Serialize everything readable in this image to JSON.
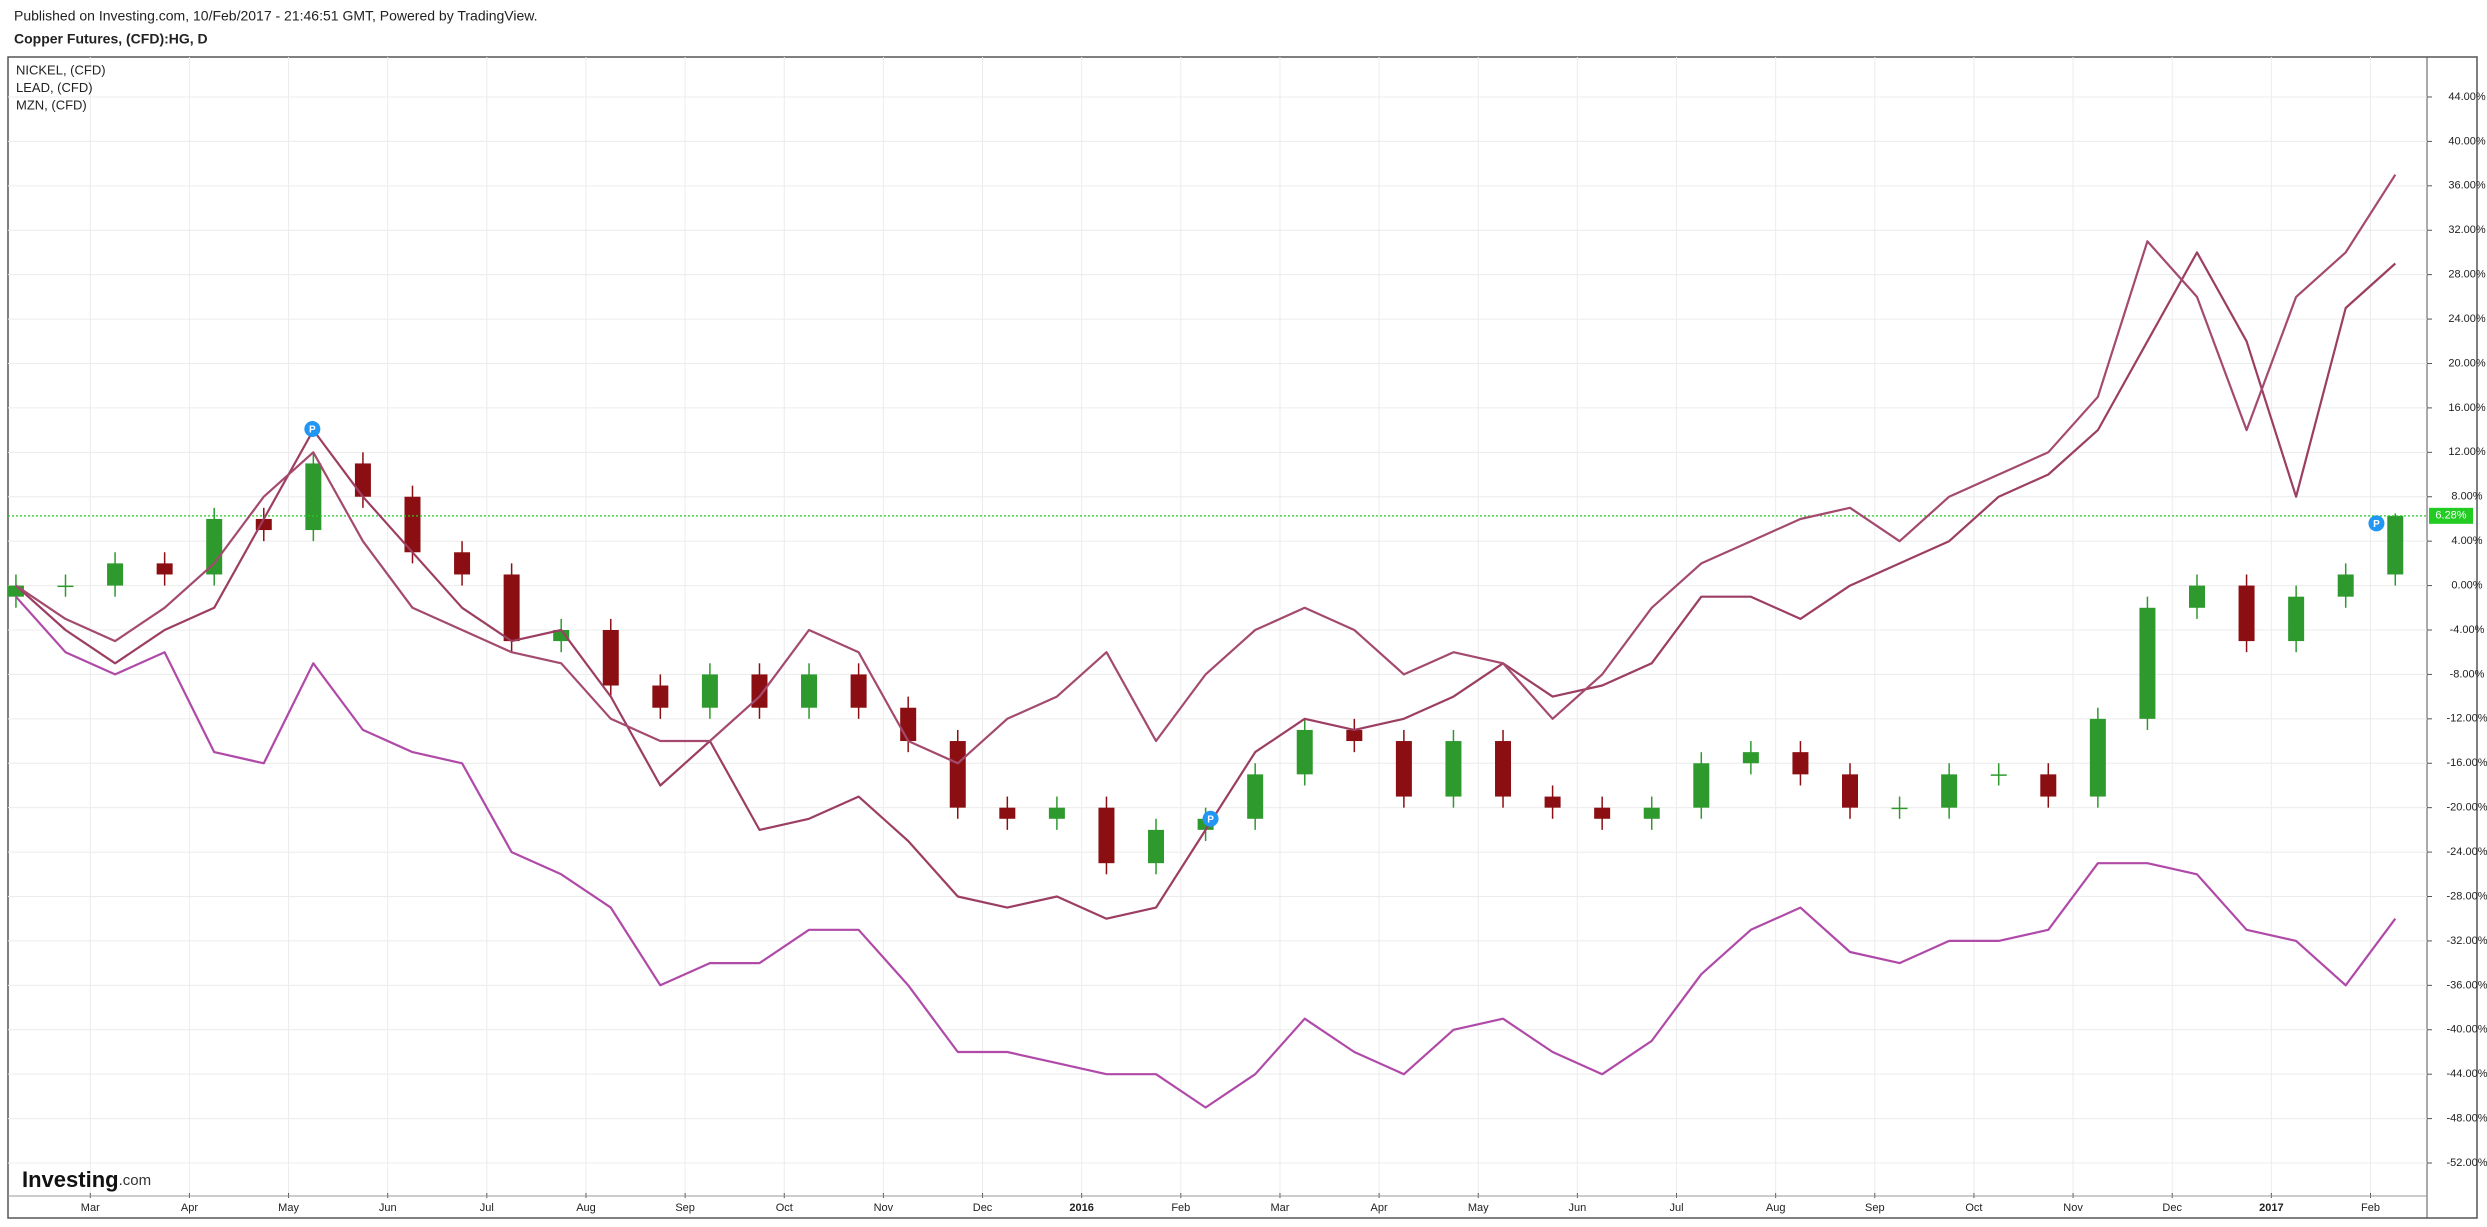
{
  "chart_data": {
    "type": "candlestick",
    "title": "Published on Investing.com, 10/Feb/2017 - 21:46:51 GMT, Powered by TradingView.",
    "subtitle": "Copper Futures, (CFD):HG, D",
    "logo": [
      "Investing",
      ".com"
    ],
    "x": [
      -0.75,
      -0.25,
      0.25,
      0.75,
      1.25,
      1.75,
      2.25,
      2.75,
      3.25,
      3.75,
      4.25,
      4.75,
      5.25,
      5.75,
      6.25,
      6.75,
      7.25,
      7.75,
      8.25,
      8.75,
      9.25,
      9.75,
      10.25,
      10.75,
      11.25,
      11.75,
      12.25,
      12.75,
      13.25,
      13.75,
      14.25,
      14.75,
      15.25,
      15.75,
      16.25,
      16.75,
      17.25,
      17.75,
      18.25,
      18.75,
      19.25,
      19.75,
      20.25,
      20.75,
      21.25,
      21.75,
      22.25,
      22.75,
      23.25
    ],
    "candles": {
      "up_color": "#2e9a2e",
      "down_color": "#8b0f12",
      "open": [
        -1,
        0,
        0,
        2,
        1,
        6,
        5,
        11,
        8,
        3,
        1,
        -5,
        -4,
        -9,
        -11,
        -8,
        -11,
        -8,
        -11,
        -14,
        -20,
        -21,
        -20,
        -25,
        -22,
        -21,
        -17,
        -13,
        -14,
        -19,
        -14,
        -19,
        -20,
        -21,
        -20,
        -16,
        -15,
        -17,
        -20,
        -20,
        -17,
        -17,
        -19,
        -12,
        -2,
        0,
        -5,
        -1,
        1
      ],
      "high": [
        1,
        1,
        3,
        3,
        7,
        7,
        12,
        12,
        9,
        4,
        2,
        -3,
        -3,
        -8,
        -7,
        -7,
        -7,
        -7,
        -10,
        -13,
        -19,
        -19,
        -19,
        -21,
        -20,
        -16,
        -12,
        -12,
        -13,
        -13,
        -13,
        -18,
        -19,
        -19,
        -15,
        -14,
        -14,
        -16,
        -19,
        -16,
        -16,
        -16,
        -11,
        -1,
        1,
        1,
        0,
        2,
        6.5
      ],
      "low": [
        -2,
        -1,
        -1,
        0,
        0,
        4,
        4,
        7,
        2,
        0,
        -6,
        -6,
        -10,
        -12,
        -12,
        -12,
        -12,
        -12,
        -15,
        -21,
        -22,
        -22,
        -26,
        -26,
        -23,
        -22,
        -18,
        -15,
        -20,
        -20,
        -20,
        -21,
        -22,
        -22,
        -21,
        -17,
        -18,
        -21,
        -21,
        -21,
        -18,
        -20,
        -20,
        -13,
        -3,
        -6,
        -6,
        -2,
        0
      ],
      "close": [
        0,
        0,
        2,
        1,
        6,
        5,
        11,
        8,
        3,
        1,
        -5,
        -4,
        -9,
        -11,
        -8,
        -11,
        -8,
        -11,
        -14,
        -20,
        -21,
        -20,
        -25,
        -22,
        -21,
        -17,
        -13,
        -14,
        -19,
        -14,
        -19,
        -20,
        -21,
        -20,
        -16,
        -15,
        -17,
        -20,
        -20,
        -17,
        -17,
        -19,
        -12,
        -2,
        0,
        -5,
        -1,
        1,
        6.28
      ]
    },
    "last_value_label": "6.28%",
    "last_color": "#22cc22",
    "series": [
      {
        "name": "NICKEL,  (CFD)",
        "color": "#b04aa8",
        "values": [
          -1,
          -6,
          -8,
          -6,
          -15,
          -16,
          -7,
          -13,
          -15,
          -16,
          -24,
          -26,
          -29,
          -36,
          -34,
          -34,
          -31,
          -31,
          -36,
          -42,
          -42,
          -43,
          -44,
          -44,
          -47,
          -44,
          -39,
          -42,
          -44,
          -40,
          -39,
          -42,
          -44,
          -41,
          -35,
          -31,
          -29,
          -33,
          -34,
          -32,
          -32,
          -31,
          -25,
          -25,
          -26,
          -31,
          -32,
          -36,
          -30
        ]
      },
      {
        "name": "LEAD,  (CFD)",
        "color": "#9c3e62",
        "values": [
          0,
          -4,
          -7,
          -4,
          -2,
          6,
          14,
          8,
          3,
          -2,
          -5,
          -4,
          -10,
          -18,
          -14,
          -22,
          -21,
          -19,
          -23,
          -28,
          -29,
          -28,
          -30,
          -29,
          -22,
          -15,
          -12,
          -13,
          -12,
          -10,
          -7,
          -10,
          -9,
          -7,
          -1,
          -1,
          -3,
          0,
          2,
          4,
          8,
          10,
          14,
          22,
          30,
          22,
          8,
          25,
          29
        ]
      },
      {
        "name": "MZN,  (CFD)",
        "color": "#a34a6e",
        "values": [
          0,
          -3,
          -5,
          -2,
          2,
          8,
          12,
          4,
          -2,
          -4,
          -6,
          -7,
          -12,
          -14,
          -14,
          -10,
          -4,
          -6,
          -14,
          -16,
          -12,
          -10,
          -6,
          -14,
          -8,
          -4,
          -2,
          -4,
          -8,
          -6,
          -7,
          -12,
          -8,
          -2,
          2,
          4,
          6,
          7,
          4,
          8,
          10,
          12,
          17,
          31,
          26,
          14,
          26,
          30,
          37
        ]
      }
    ],
    "annotations": [
      {
        "x": 2.24,
        "y": 14.1,
        "text": "P"
      },
      {
        "x": 11.3,
        "y": -21,
        "text": "P"
      },
      {
        "x": 23.06,
        "y": 5.6,
        "text": "P"
      }
    ],
    "xlim": [
      -0.83,
      23.57
    ],
    "ylim": [
      -54.7,
      47.6
    ],
    "xticks": [
      {
        "value": 0,
        "label": "Mar"
      },
      {
        "value": 1,
        "label": "Apr"
      },
      {
        "value": 2,
        "label": "May"
      },
      {
        "value": 3,
        "label": "Jun"
      },
      {
        "value": 4,
        "label": "Jul"
      },
      {
        "value": 5,
        "label": "Aug"
      },
      {
        "value": 6,
        "label": "Sep"
      },
      {
        "value": 7,
        "label": "Oct"
      },
      {
        "value": 8,
        "label": "Nov"
      },
      {
        "value": 9,
        "label": "Dec"
      },
      {
        "value": 10,
        "label": "2016"
      },
      {
        "value": 11,
        "label": "Feb"
      },
      {
        "value": 12,
        "label": "Mar"
      },
      {
        "value": 13,
        "label": "Apr"
      },
      {
        "value": 14,
        "label": "May"
      },
      {
        "value": 15,
        "label": "Jun"
      },
      {
        "value": 16,
        "label": "Jul"
      },
      {
        "value": 17,
        "label": "Aug"
      },
      {
        "value": 18,
        "label": "Sep"
      },
      {
        "value": 19,
        "label": "Oct"
      },
      {
        "value": 20,
        "label": "Nov"
      },
      {
        "value": 21,
        "label": "Dec"
      },
      {
        "value": 22,
        "label": "2017"
      },
      {
        "value": 23,
        "label": "Feb"
      }
    ],
    "yticks": [
      {
        "value": 44,
        "label": "44.00%"
      },
      {
        "value": 40,
        "label": "40.00%"
      },
      {
        "value": 36,
        "label": "36.00%"
      },
      {
        "value": 32,
        "label": "32.00%"
      },
      {
        "value": 28,
        "label": "28.00%"
      },
      {
        "value": 24,
        "label": "24.00%"
      },
      {
        "value": 20,
        "label": "20.00%"
      },
      {
        "value": 16,
        "label": "16.00%"
      },
      {
        "value": 12,
        "label": "12.00%"
      },
      {
        "value": 8,
        "label": "8.00%"
      },
      {
        "value": 4,
        "label": "4.00%"
      },
      {
        "value": 0,
        "label": "0.00%"
      },
      {
        "value": -4,
        "label": "-4.00%"
      },
      {
        "value": -8,
        "label": "-8.00%"
      },
      {
        "value": -12,
        "label": "-12.00%"
      },
      {
        "value": -16,
        "label": "-16.00%"
      },
      {
        "value": -20,
        "label": "-20.00%"
      },
      {
        "value": -24,
        "label": "-24.00%"
      },
      {
        "value": -28,
        "label": "-28.00%"
      },
      {
        "value": -32,
        "label": "-32.00%"
      },
      {
        "value": -36,
        "label": "-36.00%"
      },
      {
        "value": -40,
        "label": "-40.00%"
      },
      {
        "value": -44,
        "label": "-44.00%"
      },
      {
        "value": -48,
        "label": "-48.00%"
      },
      {
        "value": -52,
        "label": "-52.00%"
      }
    ],
    "grid": true
  }
}
